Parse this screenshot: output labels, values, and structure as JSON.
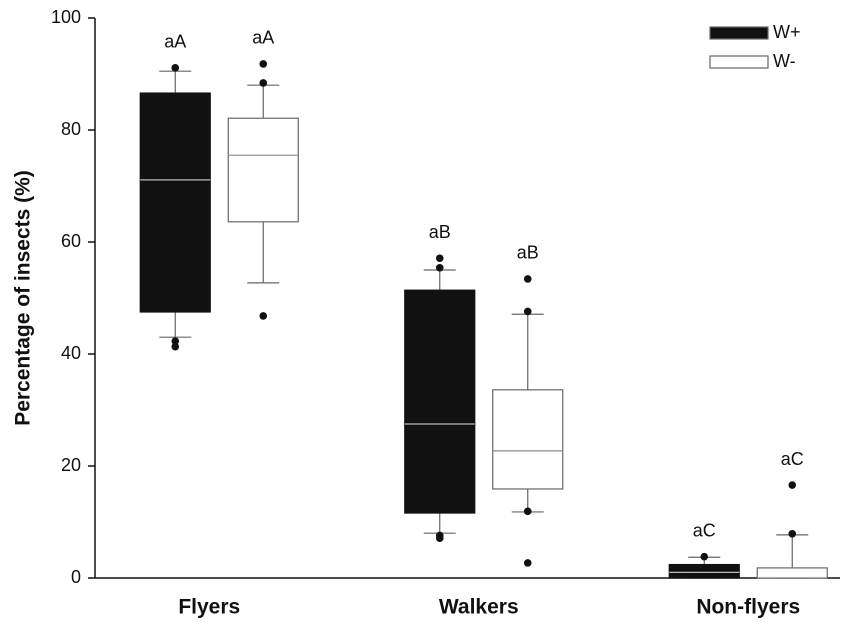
{
  "chart_data": {
    "type": "box",
    "y_label": "Percentage of insects (%)",
    "categories": [
      "Flyers",
      "Walkers",
      "Non-flyers"
    ],
    "ylim": [
      0,
      100
    ],
    "yticks": [
      0,
      20,
      40,
      60,
      80,
      100
    ],
    "series": [
      {
        "name": "W+",
        "color": "#111111",
        "median_color": "#bbbbbb",
        "q1": [
          47.5,
          11.6,
          0
        ],
        "median": [
          71.1,
          27.5,
          1
        ],
        "q3": [
          86.6,
          51.4,
          2.4
        ],
        "whislo": [
          43,
          8,
          0
        ],
        "whishi": [
          90.5,
          55,
          3.7
        ],
        "outliers": [
          [
            91.1,
            41.3,
            42.3
          ],
          [
            57.1,
            55.4,
            7.6,
            7.1
          ],
          [
            3.8
          ]
        ],
        "labels": [
          "aA",
          "aB",
          "aC"
        ]
      },
      {
        "name": "W-",
        "color": "#ffffff",
        "median_color": "#888888",
        "q1": [
          63.6,
          15.9,
          0
        ],
        "median": [
          75.5,
          22.7,
          0
        ],
        "q3": [
          82.1,
          33.6,
          1.8
        ],
        "whislo": [
          52.7,
          11.8,
          0
        ],
        "whishi": [
          88,
          47.1,
          7.7
        ],
        "outliers": [
          [
            91.8,
            88.4,
            46.8
          ],
          [
            53.4,
            47.6,
            11.9,
            2.7
          ],
          [
            16.6,
            7.9
          ]
        ],
        "labels": [
          "aA",
          "aB",
          "aC"
        ]
      }
    ]
  }
}
